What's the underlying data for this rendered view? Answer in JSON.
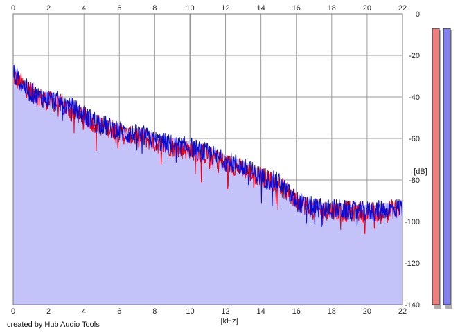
{
  "colors": {
    "left_channel": "#e8001a",
    "right_channel": "#0a0ad0",
    "fill": "#c3c3fa",
    "grid": "#9a9a9a",
    "level_left": "#f08080",
    "level_right": "#8080f0"
  },
  "footer": {
    "credit": "created by Hub Audio Tools"
  },
  "chart_data": {
    "type": "line",
    "xlabel": "[kHz]",
    "ylabel": "[dB]",
    "xlim": [
      0,
      22
    ],
    "ylim": [
      -140,
      0
    ],
    "x_ticks": [
      0,
      2,
      4,
      6,
      8,
      10,
      12,
      14,
      16,
      18,
      20,
      22
    ],
    "y_ticks": [
      0,
      -20,
      -40,
      -60,
      -80,
      -100,
      -120,
      -140
    ],
    "grid": true,
    "x": [
      0.0,
      0.5,
      1.0,
      1.5,
      2.0,
      2.5,
      3.0,
      3.5,
      4.0,
      4.5,
      5.0,
      5.5,
      6.0,
      6.5,
      7.0,
      7.5,
      8.0,
      8.5,
      9.0,
      9.5,
      10.0,
      10.5,
      11.0,
      11.5,
      12.0,
      12.5,
      13.0,
      13.5,
      14.0,
      14.5,
      15.0,
      15.5,
      16.0,
      16.5,
      17.0,
      17.5,
      18.0,
      18.5,
      19.0,
      19.5,
      20.0,
      20.5,
      21.0,
      21.5,
      22.0
    ],
    "series": [
      {
        "values": [
          -30,
          -34,
          -37,
          -40,
          -42,
          -43,
          -45,
          -47,
          -49,
          -52,
          -54,
          -55,
          -57,
          -59,
          -59,
          -60,
          -62,
          -63,
          -64,
          -65,
          -65,
          -67,
          -68,
          -70,
          -72,
          -73,
          -75,
          -77,
          -78,
          -80,
          -82,
          -86,
          -90,
          -92,
          -94,
          -95,
          -94,
          -95,
          -95,
          -95,
          -96,
          -95,
          -95,
          -94,
          -93
        ]
      },
      {
        "values": [
          -28,
          -34,
          -38,
          -40,
          -41,
          -42,
          -44,
          -46,
          -49,
          -51,
          -53,
          -55,
          -56,
          -58,
          -58,
          -59,
          -61,
          -62,
          -63,
          -64,
          -64,
          -66,
          -67,
          -69,
          -71,
          -72,
          -74,
          -76,
          -78,
          -80,
          -81,
          -86,
          -90,
          -92,
          -93,
          -94,
          -94,
          -94,
          -95,
          -95,
          -95,
          -95,
          -94,
          -94,
          -93
        ]
      }
    ],
    "levels": [
      -7,
      -7
    ]
  }
}
